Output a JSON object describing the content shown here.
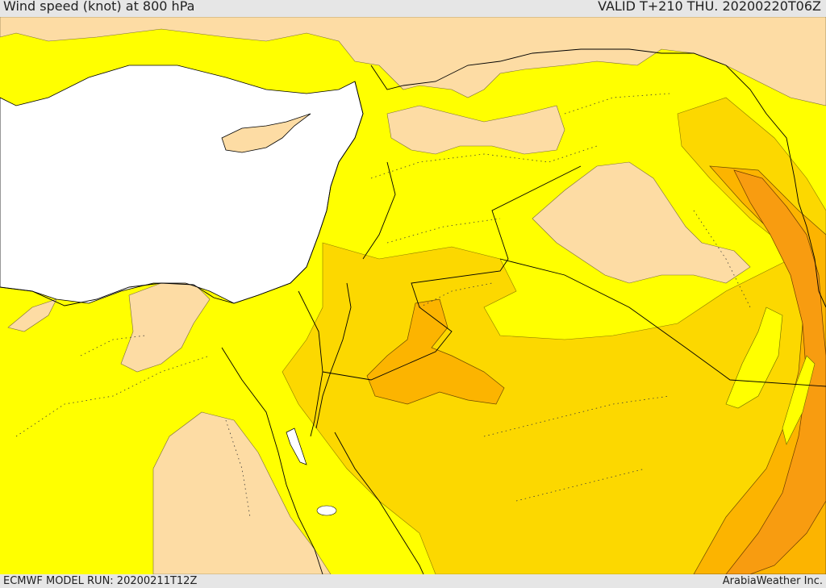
{
  "header": {
    "title": "Wind speed (knot) at 800 hPa",
    "valid": "VALID T+210 THU. 20200220T06Z"
  },
  "footer": {
    "model_run": "ECMWF MODEL RUN: 20200211T12Z",
    "credit": "ArabiaWeather Inc."
  },
  "colors": {
    "background_field": "#ffff00",
    "low_wind": "#fddca4",
    "mid_wind": "#fcd800",
    "high_wind": "#fcb400",
    "higher_wind": "#f89c10",
    "sea_mask": "#ffffff",
    "bars": "#e6e6e6"
  }
}
